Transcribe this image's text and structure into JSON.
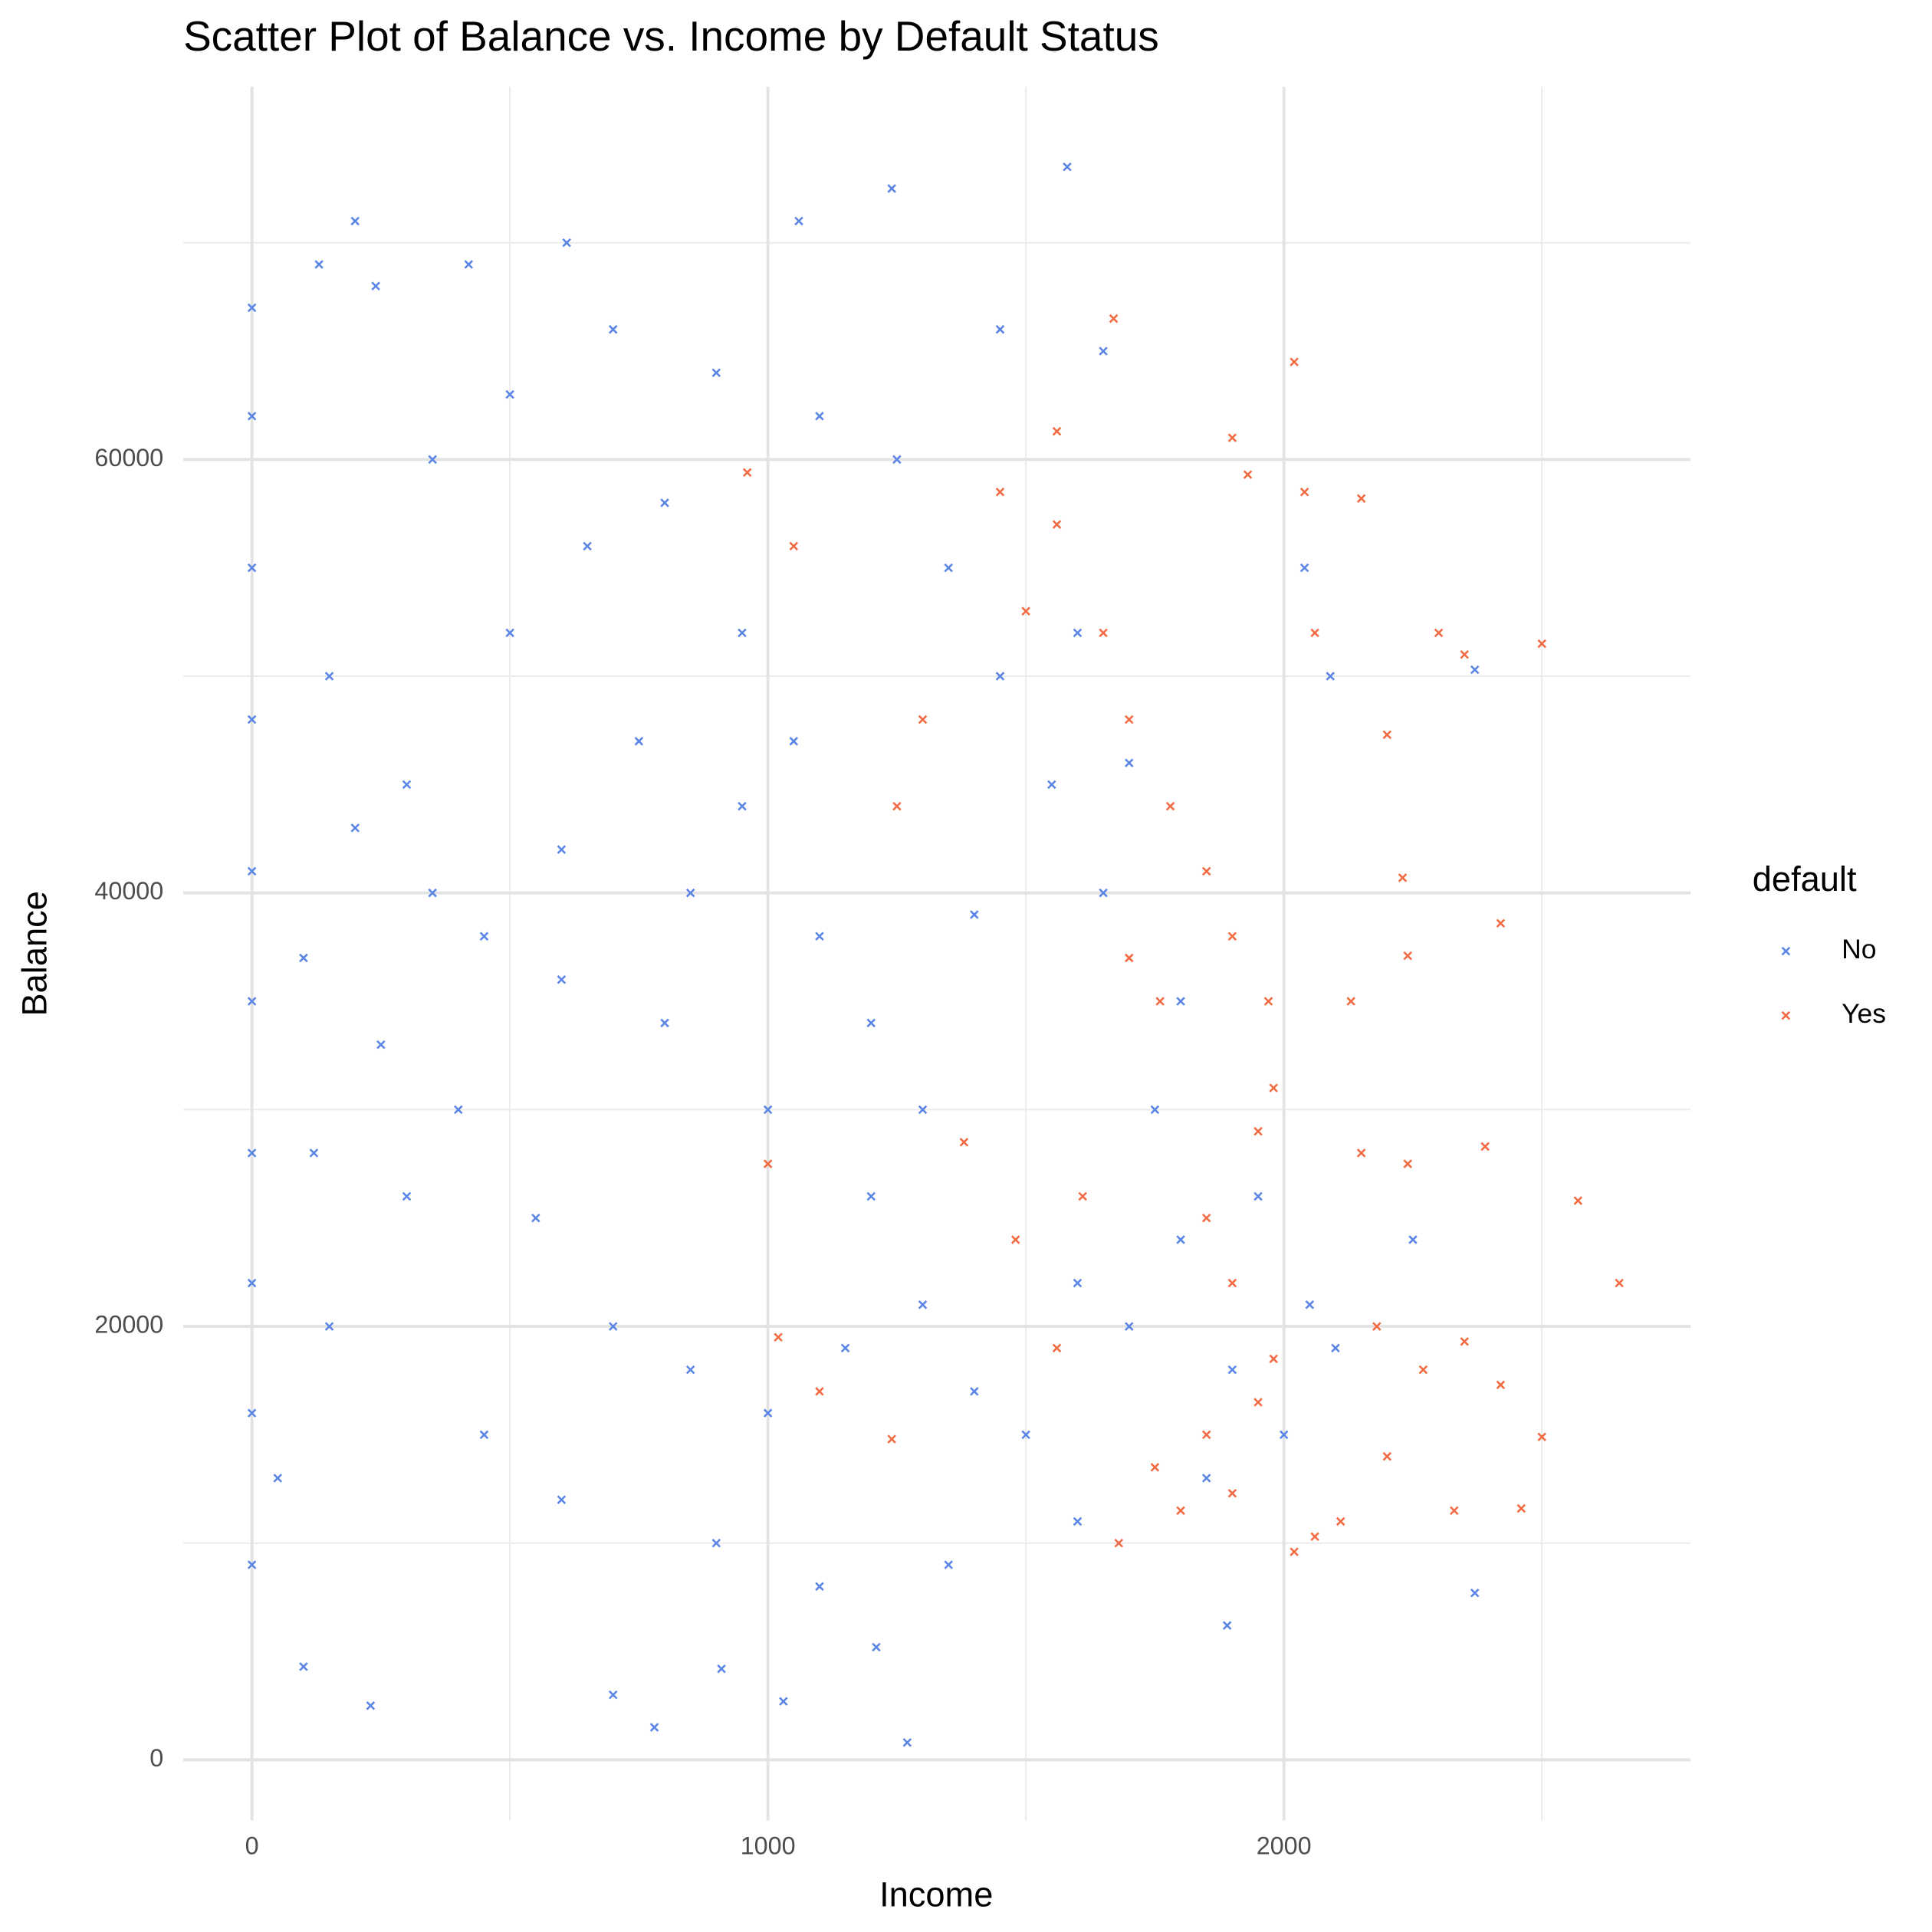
{
  "chart_data": {
    "type": "scatter",
    "title": "Scatter Plot of Balance vs. Income by Default Status",
    "x_label": "Income",
    "y_label": "Balance",
    "legend_title": "default",
    "xlim": [
      -133,
      2788
    ],
    "ylim": [
      -2800,
      77200
    ],
    "xticks": [
      0,
      1000,
      2000
    ],
    "yticks": [
      0,
      20000,
      40000,
      60000
    ],
    "xminor": [
      500,
      1500,
      2500
    ],
    "yminor": [
      10000,
      30000,
      50000,
      70000
    ],
    "grid": true,
    "legend": "right",
    "series": [
      {
        "name": "No",
        "color": "#5b86e5",
        "x": [
          0,
          0,
          0,
          0,
          0,
          0,
          0,
          0,
          0,
          0,
          200,
          130,
          420,
          610,
          1060,
          1240,
          1580,
          240,
          100,
          230,
          780,
          1030,
          1270,
          700,
          910,
          1210,
          2370,
          1890,
          2370,
          2040,
          2090,
          1650,
          1450,
          300,
          450,
          600,
          750,
          850,
          950,
          1100,
          1200,
          500,
          650,
          800,
          350,
          150,
          250,
          400,
          550,
          700,
          850,
          1000,
          1150,
          1300,
          1400,
          1500,
          1600,
          1700,
          1800,
          1900,
          1750,
          1650,
          1550,
          1450,
          1350,
          1250,
          1100,
          900,
          700,
          500,
          300,
          150,
          450,
          600,
          900,
          1100,
          1350,
          1600,
          1850,
          2000,
          2100,
          2250,
          2050,
          1950,
          1800,
          1700,
          1600,
          1400,
          1300,
          1200,
          1000,
          800,
          600,
          350,
          200,
          100,
          50,
          120,
          950,
          1050
        ],
        "values": [
          67000,
          62000,
          55000,
          48000,
          41000,
          35000,
          28000,
          22000,
          16000,
          9000,
          71000,
          69000,
          69000,
          70000,
          71000,
          72500,
          73500,
          68000,
          4300,
          2500,
          1500,
          2700,
          800,
          3000,
          4200,
          5200,
          7700,
          6200,
          50300,
          55000,
          50000,
          65000,
          66000,
          45000,
          38000,
          42000,
          47000,
          40000,
          44000,
          38000,
          34000,
          52000,
          56000,
          58000,
          60000,
          50000,
          33000,
          30000,
          25000,
          20000,
          18000,
          16000,
          19000,
          21000,
          17000,
          15000,
          22000,
          20000,
          24000,
          18000,
          30000,
          40000,
          45000,
          50000,
          55000,
          60000,
          62000,
          64000,
          66000,
          63000,
          26000,
          20000,
          15000,
          12000,
          10000,
          8000,
          9000,
          11000,
          13000,
          15000,
          19000,
          24000,
          21000,
          26000,
          35000,
          46000,
          52000,
          39000,
          30000,
          26000,
          30000,
          34000,
          36000,
          40000,
          43000,
          37000,
          13000,
          28000,
          52000,
          47000
        ]
      },
      {
        "name": "Yes",
        "color": "#f26b43",
        "x": [
          1670,
          2020,
          2150,
          2040,
          1900,
          1560,
          1930,
          2500,
          2300,
          2350,
          2060,
          2200,
          2230,
          2420,
          2240,
          2130,
          2150,
          2240,
          2390,
          2650,
          2570,
          2500,
          2460,
          2330,
          2420,
          2350,
          2200,
          2270,
          2180,
          2110,
          2060,
          2020,
          1900,
          1800,
          1680,
          1750,
          1850,
          1950,
          1980,
          1900,
          1850,
          1950,
          1980,
          1970,
          1900,
          1850,
          1780,
          1700,
          1650,
          1560,
          1500,
          1450,
          1300,
          1250,
          1050,
          960,
          1000,
          1020,
          1100,
          1240,
          1380,
          1480,
          1560,
          1610,
          1700,
          1760
        ],
        "values": [
          66500,
          64500,
          58200,
          58500,
          61000,
          61300,
          59300,
          51500,
          52000,
          51000,
          52000,
          47300,
          40700,
          38600,
          37100,
          35000,
          28000,
          27500,
          28300,
          22000,
          25800,
          14900,
          11600,
          11500,
          17300,
          19300,
          14000,
          18000,
          20000,
          11000,
          10300,
          9600,
          12300,
          11500,
          10000,
          13500,
          15000,
          16500,
          18500,
          22000,
          25000,
          29000,
          31000,
          35000,
          38000,
          41000,
          44000,
          48000,
          52000,
          57000,
          53000,
          58500,
          48000,
          44000,
          56000,
          59400,
          27500,
          19500,
          17000,
          14800,
          28500,
          24000,
          19000,
          26000,
          37000,
          35000
        ]
      }
    ]
  }
}
